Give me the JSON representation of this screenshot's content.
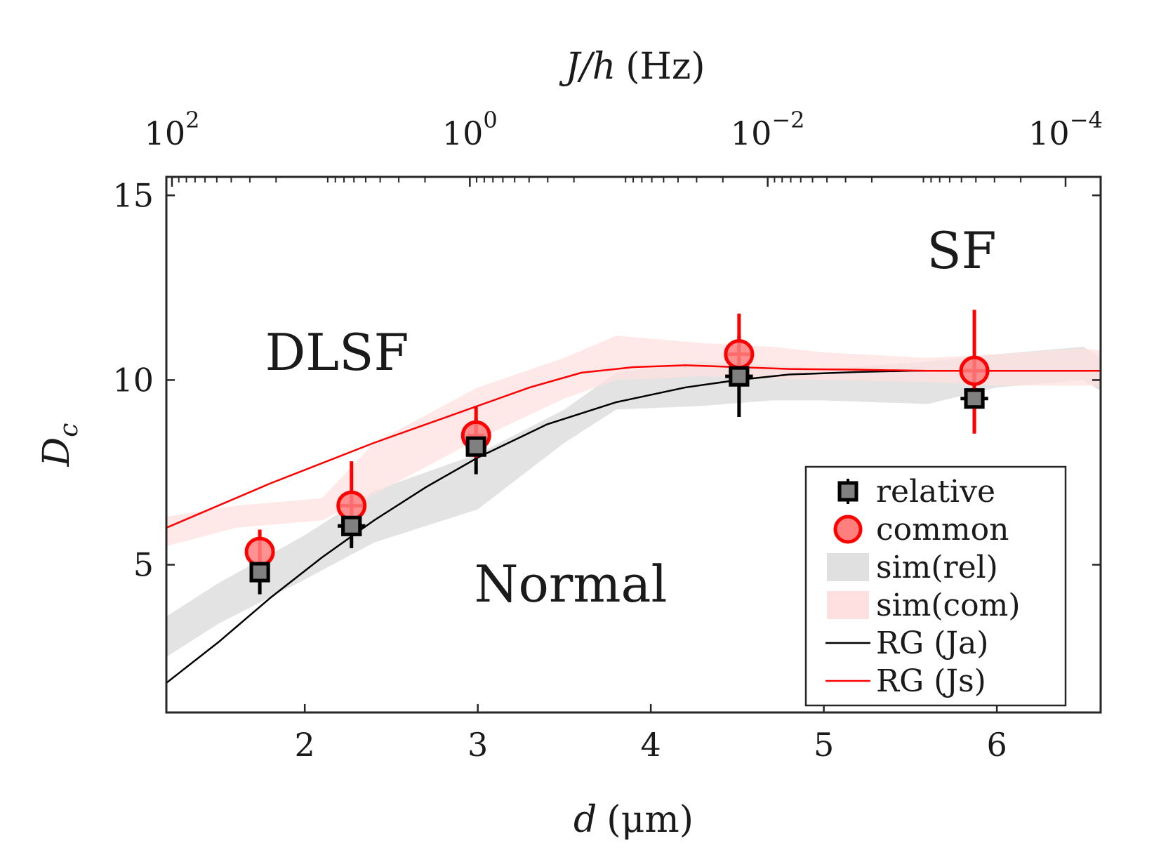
{
  "chart_data": {
    "type": "scatter",
    "xlabel_main": "d",
    "xlabel_unit": "(μm)",
    "ylabel_main": "D",
    "ylabel_sub": "c",
    "top_xlabel_main": "J/h",
    "top_xlabel_unit": "(Hz)",
    "xlim": [
      1.2,
      6.6
    ],
    "ylim": [
      1.0,
      15.5
    ],
    "x_ticks": [
      2,
      3,
      4,
      5,
      6
    ],
    "x_tick_labels": [
      "2",
      "3",
      "4",
      "5",
      "6"
    ],
    "y_ticks": [
      5,
      10,
      15
    ],
    "y_tick_labels": [
      "5",
      "10",
      "15"
    ],
    "top_axis": {
      "scale": "log",
      "reversed": true,
      "ticks": [
        100,
        1,
        0.01,
        0.0001
      ],
      "tick_labels": [
        {
          "base": "10",
          "exp": "2"
        },
        {
          "base": "10",
          "exp": "0"
        },
        {
          "base": "10",
          "exp": "−2"
        },
        {
          "base": "10",
          "exp": "−4"
        }
      ]
    },
    "grid": false,
    "legend_position": "bottom-right",
    "region_labels": [
      "DLSF",
      "SF",
      "Normal"
    ],
    "series": [
      {
        "name": "relative",
        "kind": "errorbar",
        "marker": "square",
        "color": "#000000",
        "fill": "#808080",
        "x": [
          1.74,
          2.27,
          2.99,
          4.51,
          5.87
        ],
        "y": [
          4.8,
          6.05,
          8.2,
          10.1,
          9.5
        ],
        "yerr": [
          0.6,
          0.6,
          0.75,
          1.1,
          0.9
        ],
        "xerr": [
          0.0,
          0.08,
          0.06,
          0.08,
          0.08
        ]
      },
      {
        "name": "common",
        "kind": "errorbar",
        "marker": "circle",
        "color": "#ff0000",
        "fill": "#ff7f7f",
        "x": [
          1.74,
          2.27,
          2.99,
          4.51,
          5.87
        ],
        "y": [
          5.35,
          6.6,
          8.5,
          10.7,
          10.25
        ],
        "yerr_lower": [
          0.4,
          0.5,
          0.6,
          0.7,
          1.7
        ],
        "yerr_upper": [
          0.6,
          1.2,
          0.8,
          1.1,
          1.65
        ],
        "xerr": [
          0.0,
          0.08,
          0.05,
          0.08,
          0.08
        ]
      },
      {
        "name": "sim(rel)",
        "kind": "band",
        "color": "#e0e0e0",
        "x": [
          1.2,
          1.5,
          2.0,
          2.4,
          3.0,
          3.5,
          3.8,
          4.3,
          4.7,
          5.0,
          5.6,
          6.0,
          6.5,
          6.6
        ],
        "lower": [
          2.5,
          3.4,
          4.6,
          5.6,
          6.5,
          8.3,
          9.2,
          9.3,
          9.45,
          9.45,
          9.35,
          9.8,
          10.0,
          9.7
        ],
        "upper": [
          3.6,
          4.5,
          5.8,
          7.0,
          8.0,
          9.2,
          10.2,
          10.5,
          10.4,
          10.3,
          10.5,
          10.7,
          10.9,
          10.6
        ]
      },
      {
        "name": "sim(com)",
        "kind": "band",
        "color": "#ffe0e0",
        "x": [
          1.2,
          1.6,
          2.1,
          2.4,
          3.0,
          3.5,
          3.8,
          4.3,
          4.7,
          5.0,
          5.6,
          6.0,
          6.5,
          6.6
        ],
        "lower": [
          5.5,
          6.0,
          6.2,
          6.9,
          8.4,
          9.5,
          10.0,
          10.1,
          10.05,
          10.0,
          9.95,
          9.85,
          9.85,
          9.85
        ],
        "upper": [
          6.3,
          6.6,
          6.8,
          8.3,
          9.8,
          10.6,
          11.2,
          11.0,
          10.9,
          10.75,
          10.6,
          10.7,
          10.85,
          10.8
        ]
      },
      {
        "name": "RG (Ja)",
        "kind": "line",
        "color": "#000000",
        "x": [
          1.2,
          1.5,
          1.8,
          2.1,
          2.4,
          2.7,
          3.0,
          3.4,
          3.8,
          4.2,
          4.5,
          4.8,
          5.2,
          5.5,
          6.0,
          6.6
        ],
        "y": [
          1.8,
          2.9,
          4.1,
          5.2,
          6.2,
          7.1,
          7.9,
          8.8,
          9.4,
          9.8,
          10.0,
          10.15,
          10.22,
          10.25,
          10.25,
          10.25
        ]
      },
      {
        "name": "RG (Js)",
        "kind": "line",
        "color": "#ff0000",
        "x": [
          1.2,
          1.5,
          1.8,
          2.1,
          2.4,
          2.7,
          3.0,
          3.3,
          3.6,
          3.9,
          4.2,
          4.5,
          4.8,
          5.2,
          5.6,
          6.0,
          6.6
        ],
        "y": [
          6.0,
          6.6,
          7.2,
          7.75,
          8.3,
          8.8,
          9.3,
          9.8,
          10.2,
          10.35,
          10.4,
          10.35,
          10.3,
          10.28,
          10.25,
          10.25,
          10.25
        ]
      }
    ]
  }
}
